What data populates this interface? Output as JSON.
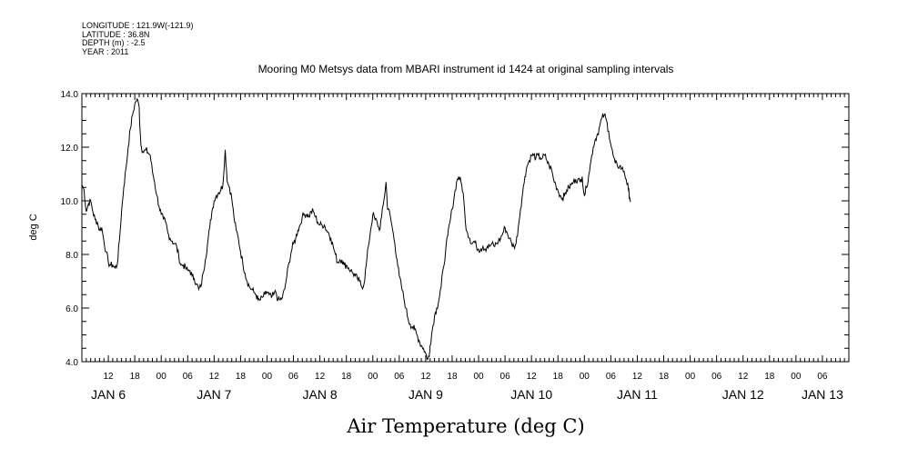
{
  "chart_data": {
    "type": "line",
    "header_lines": [
      "LONGITUDE : 121.9W(-121.9)",
      "LATITUDE : 36.8N",
      "DEPTH (m) : -2.5",
      "YEAR : 2011"
    ],
    "title": "Mooring M0 Metsys data from MBARI instrument id 1424 at original sampling intervals",
    "xlabel": "Air Temperature (deg C)",
    "ylabel": "deg C",
    "ylim": [
      4.0,
      14.0
    ],
    "y_ticks": [
      "4.0",
      "6.0",
      "8.0",
      "10.0",
      "12.0",
      "14.0"
    ],
    "xlim_hours": [
      6,
      180
    ],
    "x_hour_ticks": [
      {
        "h": 12,
        "label": "12"
      },
      {
        "h": 18,
        "label": "18"
      },
      {
        "h": 24,
        "label": "00"
      },
      {
        "h": 30,
        "label": "06"
      },
      {
        "h": 36,
        "label": "12"
      },
      {
        "h": 42,
        "label": "18"
      },
      {
        "h": 48,
        "label": "00"
      },
      {
        "h": 54,
        "label": "06"
      },
      {
        "h": 60,
        "label": "12"
      },
      {
        "h": 66,
        "label": "18"
      },
      {
        "h": 72,
        "label": "00"
      },
      {
        "h": 78,
        "label": "06"
      },
      {
        "h": 84,
        "label": "12"
      },
      {
        "h": 90,
        "label": "18"
      },
      {
        "h": 96,
        "label": "00"
      },
      {
        "h": 102,
        "label": "06"
      },
      {
        "h": 108,
        "label": "12"
      },
      {
        "h": 114,
        "label": "18"
      },
      {
        "h": 120,
        "label": "00"
      },
      {
        "h": 126,
        "label": "06"
      },
      {
        "h": 132,
        "label": "12"
      },
      {
        "h": 138,
        "label": "18"
      },
      {
        "h": 144,
        "label": "00"
      },
      {
        "h": 150,
        "label": "06"
      },
      {
        "h": 156,
        "label": "12"
      },
      {
        "h": 162,
        "label": "18"
      },
      {
        "h": 168,
        "label": "00"
      },
      {
        "h": 174,
        "label": "06"
      }
    ],
    "day_labels": [
      {
        "h": 12,
        "label": "JAN 6"
      },
      {
        "h": 36,
        "label": "JAN 7"
      },
      {
        "h": 60,
        "label": "JAN 8"
      },
      {
        "h": 84,
        "label": "JAN 9"
      },
      {
        "h": 108,
        "label": "JAN 10"
      },
      {
        "h": 132,
        "label": "JAN 11"
      },
      {
        "h": 156,
        "label": "JAN 12"
      },
      {
        "h": 174,
        "label": "JAN 13"
      }
    ],
    "series": [
      {
        "points": [
          [
            6.0,
            10.6
          ],
          [
            6.5,
            10.4
          ],
          [
            7.0,
            9.6
          ],
          [
            7.5,
            9.9
          ],
          [
            8.0,
            10.0
          ],
          [
            8.5,
            9.6
          ],
          [
            9.0,
            9.3
          ],
          [
            9.5,
            9.2
          ],
          [
            10.0,
            8.9
          ],
          [
            10.5,
            9.0
          ],
          [
            11.0,
            8.5
          ],
          [
            11.5,
            8.1
          ],
          [
            12.0,
            7.7
          ],
          [
            12.5,
            7.6
          ],
          [
            13.0,
            7.6
          ],
          [
            13.5,
            7.5
          ],
          [
            14.0,
            7.6
          ],
          [
            14.5,
            8.5
          ],
          [
            15.0,
            9.6
          ],
          [
            15.5,
            10.5
          ],
          [
            16.0,
            11.2
          ],
          [
            16.5,
            12.0
          ],
          [
            17.0,
            12.7
          ],
          [
            17.5,
            13.2
          ],
          [
            18.0,
            13.6
          ],
          [
            18.5,
            13.8
          ],
          [
            19.0,
            13.5
          ],
          [
            19.2,
            12.6
          ],
          [
            19.5,
            12.0
          ],
          [
            20.0,
            11.8
          ],
          [
            20.5,
            11.9
          ],
          [
            21.0,
            11.8
          ],
          [
            21.5,
            11.7
          ],
          [
            22.0,
            11.1
          ],
          [
            22.5,
            10.7
          ],
          [
            23.0,
            10.2
          ],
          [
            23.5,
            9.8
          ],
          [
            24.0,
            9.5
          ],
          [
            24.5,
            9.3
          ],
          [
            25.0,
            9.2
          ],
          [
            25.5,
            8.8
          ],
          [
            26.0,
            8.6
          ],
          [
            26.5,
            8.5
          ],
          [
            27.0,
            8.4
          ],
          [
            27.5,
            8.3
          ],
          [
            28.0,
            7.9
          ],
          [
            28.5,
            7.6
          ],
          [
            29.0,
            7.6
          ],
          [
            29.5,
            7.5
          ],
          [
            30.0,
            7.4
          ],
          [
            30.5,
            7.4
          ],
          [
            31.0,
            7.2
          ],
          [
            31.5,
            7.1
          ],
          [
            32.0,
            6.9
          ],
          [
            32.5,
            6.7
          ],
          [
            33.0,
            6.8
          ],
          [
            33.5,
            7.3
          ],
          [
            34.0,
            7.8
          ],
          [
            34.5,
            8.4
          ],
          [
            35.0,
            9.0
          ],
          [
            35.5,
            9.6
          ],
          [
            36.0,
            10.0
          ],
          [
            36.5,
            10.2
          ],
          [
            37.0,
            10.3
          ],
          [
            37.5,
            10.4
          ],
          [
            38.0,
            10.6
          ],
          [
            38.5,
            11.9
          ],
          [
            38.8,
            11.2
          ],
          [
            39.0,
            10.7
          ],
          [
            39.5,
            10.5
          ],
          [
            40.0,
            10.1
          ],
          [
            40.5,
            9.4
          ],
          [
            41.0,
            8.9
          ],
          [
            41.5,
            8.6
          ],
          [
            42.0,
            8.1
          ],
          [
            42.5,
            7.7
          ],
          [
            43.0,
            7.3
          ],
          [
            43.5,
            7.0
          ],
          [
            44.0,
            6.8
          ],
          [
            44.5,
            6.7
          ],
          [
            45.0,
            6.6
          ],
          [
            45.5,
            6.5
          ],
          [
            46.0,
            6.3
          ],
          [
            46.5,
            6.3
          ],
          [
            47.0,
            6.4
          ],
          [
            47.5,
            6.5
          ],
          [
            48.0,
            6.6
          ],
          [
            48.5,
            6.5
          ],
          [
            49.0,
            6.4
          ],
          [
            49.5,
            6.5
          ],
          [
            50.0,
            6.6
          ],
          [
            50.5,
            6.3
          ],
          [
            51.0,
            6.3
          ],
          [
            51.5,
            6.4
          ],
          [
            52.0,
            6.7
          ],
          [
            52.5,
            7.2
          ],
          [
            53.0,
            7.7
          ],
          [
            53.5,
            8.1
          ],
          [
            54.0,
            8.4
          ],
          [
            54.5,
            8.6
          ],
          [
            55.0,
            8.9
          ],
          [
            55.5,
            9.1
          ],
          [
            56.0,
            9.4
          ],
          [
            56.5,
            9.5
          ],
          [
            57.0,
            9.5
          ],
          [
            57.5,
            9.4
          ],
          [
            58.0,
            9.6
          ],
          [
            58.5,
            9.6
          ],
          [
            59.0,
            9.4
          ],
          [
            59.5,
            9.2
          ],
          [
            60.0,
            9.1
          ],
          [
            60.5,
            9.1
          ],
          [
            61.0,
            9.1
          ],
          [
            61.5,
            8.9
          ],
          [
            62.0,
            8.8
          ],
          [
            62.5,
            8.6
          ],
          [
            63.0,
            8.3
          ],
          [
            63.5,
            8.0
          ],
          [
            64.0,
            7.7
          ],
          [
            64.5,
            7.8
          ],
          [
            65.0,
            7.8
          ],
          [
            65.5,
            7.6
          ],
          [
            66.0,
            7.6
          ],
          [
            66.5,
            7.5
          ],
          [
            67.0,
            7.4
          ],
          [
            67.5,
            7.3
          ],
          [
            68.0,
            7.2
          ],
          [
            68.5,
            7.1
          ],
          [
            69.0,
            7.0
          ],
          [
            69.5,
            6.8
          ],
          [
            70.0,
            6.9
          ],
          [
            70.5,
            7.6
          ],
          [
            71.0,
            8.3
          ],
          [
            71.5,
            8.9
          ],
          [
            72.0,
            9.5
          ],
          [
            72.5,
            9.3
          ],
          [
            73.0,
            9.2
          ],
          [
            73.5,
            8.9
          ],
          [
            74.0,
            9.4
          ],
          [
            74.5,
            10.0
          ],
          [
            75.0,
            10.7
          ],
          [
            75.3,
            9.8
          ],
          [
            75.5,
            9.7
          ],
          [
            76.0,
            9.4
          ],
          [
            76.5,
            8.9
          ],
          [
            77.0,
            8.4
          ],
          [
            77.5,
            7.8
          ],
          [
            78.0,
            7.2
          ],
          [
            78.5,
            6.8
          ],
          [
            79.0,
            6.4
          ],
          [
            79.5,
            6.0
          ],
          [
            80.0,
            5.6
          ],
          [
            80.5,
            5.4
          ],
          [
            81.0,
            5.3
          ],
          [
            81.5,
            5.2
          ],
          [
            82.0,
            5.0
          ],
          [
            82.5,
            4.8
          ],
          [
            83.0,
            4.6
          ],
          [
            83.5,
            4.5
          ],
          [
            84.0,
            4.3
          ],
          [
            84.5,
            4.1
          ],
          [
            84.8,
            4.2
          ],
          [
            85.0,
            4.6
          ],
          [
            85.5,
            5.2
          ],
          [
            86.0,
            5.7
          ],
          [
            86.5,
            6.0
          ],
          [
            87.0,
            6.3
          ],
          [
            87.5,
            6.8
          ],
          [
            88.0,
            7.5
          ],
          [
            88.5,
            8.1
          ],
          [
            89.0,
            8.7
          ],
          [
            89.5,
            9.2
          ],
          [
            90.0,
            9.7
          ],
          [
            90.5,
            10.2
          ],
          [
            91.0,
            10.7
          ],
          [
            91.5,
            10.9
          ],
          [
            92.0,
            10.7
          ],
          [
            92.5,
            10.3
          ],
          [
            93.0,
            9.2
          ],
          [
            93.5,
            8.8
          ],
          [
            94.0,
            8.6
          ],
          [
            94.5,
            8.4
          ],
          [
            95.0,
            8.5
          ],
          [
            95.5,
            8.3
          ],
          [
            96.0,
            8.2
          ],
          [
            96.5,
            8.2
          ],
          [
            97.0,
            8.3
          ],
          [
            97.5,
            8.2
          ],
          [
            98.0,
            8.3
          ],
          [
            98.5,
            8.3
          ],
          [
            99.0,
            8.4
          ],
          [
            99.5,
            8.3
          ],
          [
            100.0,
            8.4
          ],
          [
            100.5,
            8.5
          ],
          [
            101.0,
            8.6
          ],
          [
            101.5,
            8.8
          ],
          [
            102.0,
            9.0
          ],
          [
            102.5,
            8.8
          ],
          [
            103.0,
            8.6
          ],
          [
            103.5,
            8.4
          ],
          [
            104.0,
            8.3
          ],
          [
            104.5,
            8.4
          ],
          [
            105.0,
            9.0
          ],
          [
            105.5,
            9.7
          ],
          [
            106.0,
            10.3
          ],
          [
            106.5,
            10.9
          ],
          [
            107.0,
            11.3
          ],
          [
            107.5,
            11.5
          ],
          [
            108.0,
            11.7
          ],
          [
            108.5,
            11.7
          ],
          [
            109.0,
            11.6
          ],
          [
            109.5,
            11.7
          ],
          [
            110.0,
            11.6
          ],
          [
            110.5,
            11.6
          ],
          [
            111.0,
            11.7
          ],
          [
            111.5,
            11.5
          ],
          [
            112.0,
            11.3
          ],
          [
            112.5,
            11.2
          ],
          [
            113.0,
            10.8
          ],
          [
            113.5,
            10.6
          ],
          [
            114.0,
            10.4
          ],
          [
            114.5,
            10.2
          ],
          [
            115.0,
            10.1
          ],
          [
            115.5,
            10.2
          ],
          [
            116.0,
            10.4
          ],
          [
            116.5,
            10.5
          ],
          [
            117.0,
            10.6
          ],
          [
            117.5,
            10.7
          ],
          [
            118.0,
            10.8
          ],
          [
            118.5,
            10.8
          ],
          [
            119.0,
            10.7
          ],
          [
            119.5,
            10.9
          ],
          [
            120.0,
            10.2
          ],
          [
            120.5,
            10.5
          ],
          [
            121.0,
            11.0
          ],
          [
            121.5,
            11.5
          ],
          [
            122.0,
            12.0
          ],
          [
            122.5,
            12.3
          ],
          [
            123.0,
            12.5
          ],
          [
            123.5,
            12.8
          ],
          [
            124.0,
            13.1
          ],
          [
            124.5,
            13.2
          ],
          [
            125.0,
            13.0
          ],
          [
            125.5,
            12.6
          ],
          [
            126.0,
            12.1
          ],
          [
            126.5,
            11.7
          ],
          [
            127.0,
            11.4
          ],
          [
            127.5,
            11.3
          ],
          [
            128.0,
            11.3
          ],
          [
            128.5,
            11.2
          ],
          [
            129.0,
            11.1
          ],
          [
            129.5,
            10.8
          ],
          [
            130.0,
            10.4
          ],
          [
            130.3,
            10.1
          ],
          [
            130.5,
            10.0
          ]
        ]
      }
    ]
  }
}
